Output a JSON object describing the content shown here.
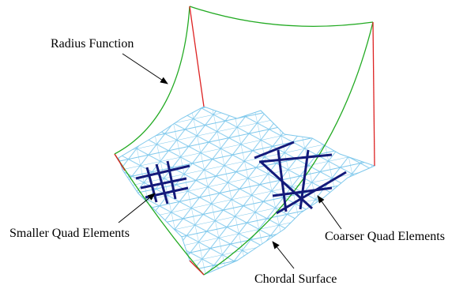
{
  "labels": {
    "radius_function": "Radius Function",
    "smaller_quad": "Smaller Quad Elements",
    "coarser_quad": "Coarser Quad Elements",
    "chordal_surface": "Chordal Surface"
  }
}
